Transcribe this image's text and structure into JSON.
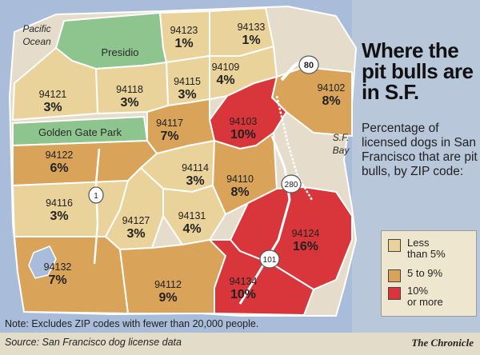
{
  "title": "Where the pit bulls are in S.F.",
  "subtitle": "Percentage of licensed dogs in San Francisco that are pit bulls, by ZIP code:",
  "places": {
    "pacific_ocean": "Pacific Ocean",
    "presidio": "Presidio",
    "golden_gate_park": "Golden Gate Park",
    "sf_bay": "S.F. Bay"
  },
  "highways": {
    "i80": "80",
    "i280": "280",
    "us101": "101",
    "hwy1": "1"
  },
  "zips": [
    {
      "zip": "94123",
      "pct": "1%",
      "category": "low"
    },
    {
      "zip": "94133",
      "pct": "1%",
      "category": "low"
    },
    {
      "zip": "94109",
      "pct": "4%",
      "category": "low"
    },
    {
      "zip": "94115",
      "pct": "3%",
      "category": "low"
    },
    {
      "zip": "94118",
      "pct": "3%",
      "category": "low"
    },
    {
      "zip": "94121",
      "pct": "3%",
      "category": "low"
    },
    {
      "zip": "94102",
      "pct": "8%",
      "category": "mid"
    },
    {
      "zip": "94103",
      "pct": "10%",
      "category": "high"
    },
    {
      "zip": "94117",
      "pct": "7%",
      "category": "mid"
    },
    {
      "zip": "94122",
      "pct": "6%",
      "category": "mid"
    },
    {
      "zip": "94114",
      "pct": "3%",
      "category": "low"
    },
    {
      "zip": "94110",
      "pct": "8%",
      "category": "mid"
    },
    {
      "zip": "94116",
      "pct": "3%",
      "category": "low"
    },
    {
      "zip": "94127",
      "pct": "3%",
      "category": "low"
    },
    {
      "zip": "94131",
      "pct": "4%",
      "category": "low"
    },
    {
      "zip": "94124",
      "pct": "16%",
      "category": "high"
    },
    {
      "zip": "94132",
      "pct": "7%",
      "category": "mid"
    },
    {
      "zip": "94112",
      "pct": "9%",
      "category": "mid"
    },
    {
      "zip": "94134",
      "pct": "10%",
      "category": "high"
    }
  ],
  "legend": [
    {
      "label": "Less\nthan 5%",
      "color": "#e9d39a"
    },
    {
      "label": "5 to 9%",
      "color": "#d9a35a"
    },
    {
      "label": "10%\nor more",
      "color": "#d9363b"
    }
  ],
  "colors": {
    "low": "#e9d39a",
    "mid": "#d9a35a",
    "high": "#d9363b",
    "water": "#a9bcd9",
    "park": "#8ec58f",
    "excluded": "#e6dccb"
  },
  "note": "Note: Excludes ZIP codes with fewer than 20,000 people.",
  "source": "Source: San Francisco dog license data",
  "credit": "The Chronicle"
}
